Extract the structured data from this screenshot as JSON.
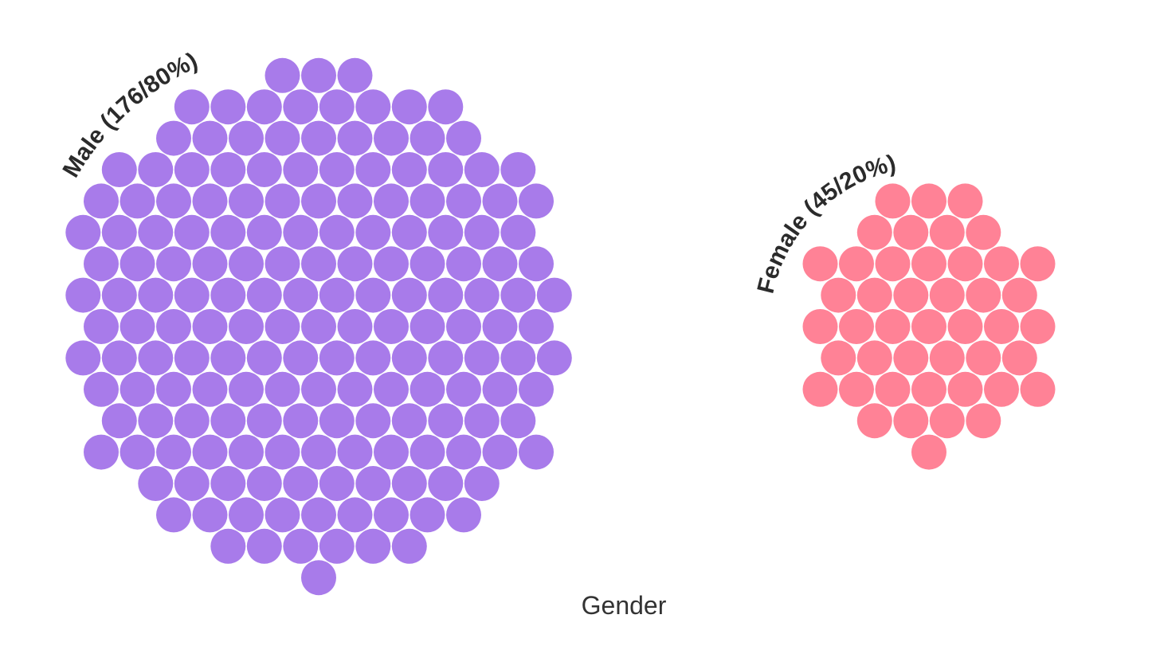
{
  "chart_data": {
    "type": "packed-dot",
    "xlabel": "Gender",
    "groups": [
      {
        "name": "Male",
        "label": "Male (176/80%)",
        "count": 176,
        "percent": 80,
        "color": "#A87BEA"
      },
      {
        "name": "Female",
        "label": "Female (45/20%)",
        "count": 45,
        "percent": 20,
        "color": "#FF8296"
      }
    ]
  }
}
